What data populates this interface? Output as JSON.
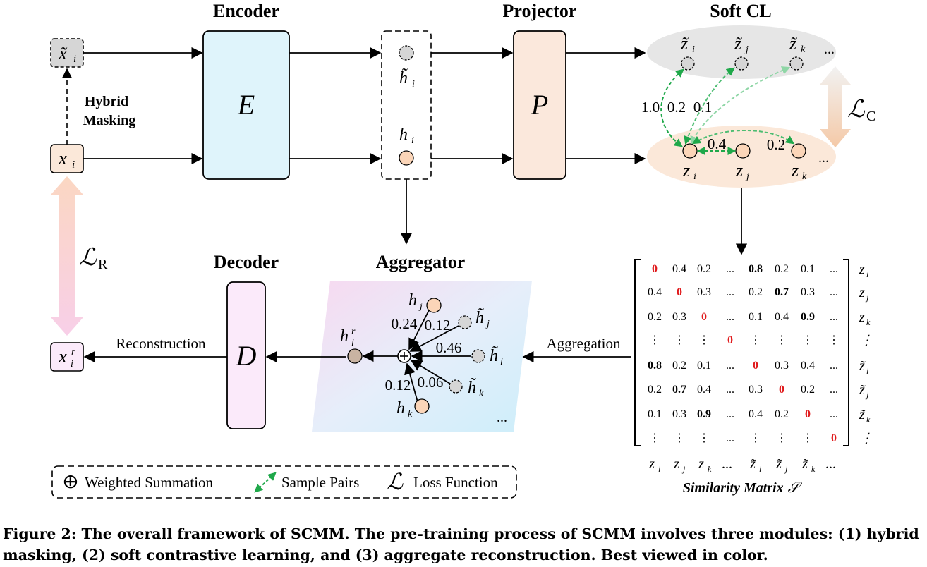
{
  "titles": {
    "encoder": "Encoder",
    "projector": "Projector",
    "soft_cl": "Soft CL",
    "decoder": "Decoder",
    "aggregator": "Aggregator"
  },
  "labels": {
    "hybrid_masking_1": "Hybrid",
    "hybrid_masking_2": "Masking",
    "reconstruction": "Reconstruction",
    "aggregation": "Aggregation"
  },
  "blocks": {
    "encoder": "E",
    "projector": "P",
    "decoder": "D"
  },
  "nodes": {
    "x_masked": "x̃",
    "x_masked_sub": "i",
    "x": "x",
    "x_sub": "i",
    "x_recon": "x",
    "x_recon_sub": "i",
    "x_recon_sup": "r",
    "h_masked": "h̃",
    "h_masked_sub": "i",
    "h": "h",
    "h_sub": "i"
  },
  "soft_cl": {
    "masked_nodes": [
      {
        "sym": "z̃",
        "sub": "i"
      },
      {
        "sym": "z̃",
        "sub": "j"
      },
      {
        "sym": "z̃",
        "sub": "k"
      }
    ],
    "nodes": [
      {
        "sym": "z",
        "sub": "i"
      },
      {
        "sym": "z",
        "sub": "j"
      },
      {
        "sym": "z",
        "sub": "k"
      }
    ],
    "ellipsis": "...",
    "weights": [
      "1.0",
      "0.2",
      "0.1",
      "0.4",
      "0.2"
    ]
  },
  "losses": {
    "symbol": "ℒ",
    "contrastive_sub": "C",
    "reconstruction_sub": "R"
  },
  "aggregator": {
    "output": {
      "sym": "h",
      "sub": "i",
      "sup": "r"
    },
    "inputs": [
      {
        "sym": "h",
        "sub": "j",
        "weight": "0.24"
      },
      {
        "sym": "h̃",
        "sub": "j",
        "weight": "0.12"
      },
      {
        "sym": "h̃",
        "sub": "i",
        "weight": "0.46"
      },
      {
        "sym": "h̃",
        "sub": "k",
        "weight": "0.06"
      },
      {
        "sym": "h",
        "sub": "k",
        "weight": "0.12"
      }
    ],
    "ellipsis": "..."
  },
  "similarity_matrix": {
    "title": "Similarity Matrix",
    "symbol": "𝒮",
    "row_labels": [
      {
        "sym": "z",
        "sub": "i"
      },
      {
        "sym": "z",
        "sub": "j"
      },
      {
        "sym": "z",
        "sub": "k"
      },
      {
        "sym": "⋮",
        "sub": ""
      },
      {
        "sym": "z̃",
        "sub": "i"
      },
      {
        "sym": "z̃",
        "sub": "j"
      },
      {
        "sym": "z̃",
        "sub": "k"
      },
      {
        "sym": "⋮",
        "sub": ""
      }
    ],
    "col_labels": [
      {
        "sym": "z",
        "sub": "i"
      },
      {
        "sym": "z",
        "sub": "j"
      },
      {
        "sym": "z",
        "sub": "k"
      },
      {
        "sym": "...",
        "sub": ""
      },
      {
        "sym": "z̃",
        "sub": "i"
      },
      {
        "sym": "z̃",
        "sub": "j"
      },
      {
        "sym": "z̃",
        "sub": "k"
      },
      {
        "sym": "...",
        "sub": ""
      }
    ],
    "rows": [
      [
        "0",
        "0.4",
        "0.2",
        "...",
        "0.8",
        "0.2",
        "0.1",
        "..."
      ],
      [
        "0.4",
        "0",
        "0.3",
        "...",
        "0.2",
        "0.7",
        "0.3",
        "..."
      ],
      [
        "0.2",
        "0.3",
        "0",
        "...",
        "0.1",
        "0.4",
        "0.9",
        "..."
      ],
      [
        "⋮",
        "⋮",
        "⋮",
        "0",
        "⋮",
        "⋮",
        "⋮",
        "⋮"
      ],
      [
        "0.8",
        "0.2",
        "0.1",
        "...",
        "0",
        "0.3",
        "0.4",
        "..."
      ],
      [
        "0.2",
        "0.7",
        "0.4",
        "...",
        "0.3",
        "0",
        "0.2",
        "..."
      ],
      [
        "0.1",
        "0.3",
        "0.9",
        "...",
        "0.4",
        "0.2",
        "0",
        "..."
      ],
      [
        "⋮",
        "⋮",
        "⋮",
        "...",
        "⋮",
        "⋮",
        "⋮",
        "0"
      ]
    ],
    "bold_cells": [
      [
        0,
        4
      ],
      [
        1,
        5
      ],
      [
        2,
        6
      ],
      [
        4,
        0
      ],
      [
        5,
        1
      ],
      [
        6,
        2
      ]
    ],
    "red_color": "#e0191b"
  },
  "legend": {
    "plus_symbol": "⊕",
    "weighted_summation": "Weighted Summation",
    "sample_pairs": "Sample Pairs",
    "loss_symbol": "ℒ",
    "loss_function": "Loss Function"
  },
  "caption": "Figure 2: The overall framework of SCMM. The pre-training process of SCMM involves three modules: (1) hybrid masking, (2) soft contrastive learning, and (3) aggregate reconstruction. Best viewed in color.",
  "colors": {
    "encoder_fill": "#dff4fb",
    "projector_fill": "#fbe8dc",
    "decoder_fill": "#fbeafa",
    "node_orange": "#fbd5b8",
    "node_gray": "#d6d6d6",
    "soft_gray": "#e6e6e6",
    "soft_orange": "#fbe8d9",
    "pair_green": "#1fa84a",
    "pair_green_light": "#8fd6a6"
  }
}
